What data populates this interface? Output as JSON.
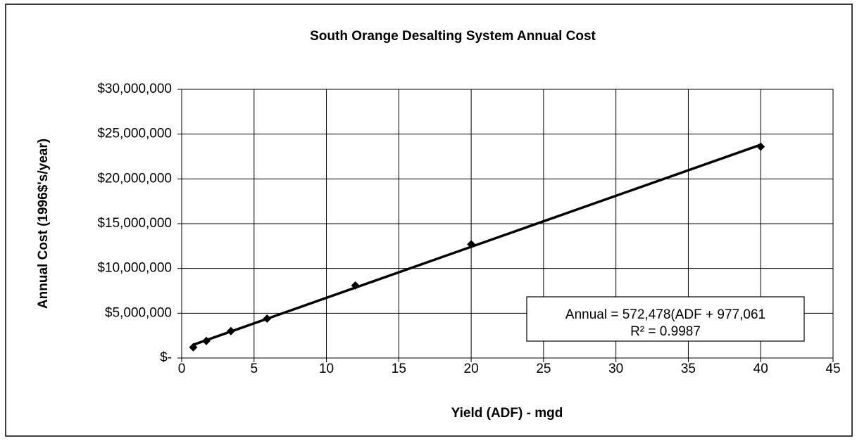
{
  "chart_data": {
    "type": "scatter",
    "title": "South Orange Desalting System Annual Cost",
    "x_label": "Yield (ADF) - mgd",
    "y_label": "Annual Cost (1996$'s/year)",
    "annotation": [
      "Annual = 572,478(ADF + 977,061",
      "R² = 0.9987"
    ],
    "x": [
      0.8,
      1.7,
      3.4,
      5.9,
      12,
      20,
      40
    ],
    "values": [
      1200000,
      1900000,
      3000000,
      4400000,
      8100000,
      12700000,
      23600000
    ],
    "color": "#000000",
    "xlim": [
      0,
      45
    ],
    "xticks": [
      0,
      5,
      10,
      15,
      20,
      25,
      30,
      35,
      40,
      45
    ],
    "ylim": [
      0,
      30000000
    ],
    "yticks": [
      {
        "value": 0,
        "label": "$-"
      },
      {
        "value": 5000000,
        "label": "$5,000,000"
      },
      {
        "value": 10000000,
        "label": "$10,000,000"
      },
      {
        "value": 15000000,
        "label": "$15,000,000"
      },
      {
        "value": 20000000,
        "label": "$20,000,000"
      },
      {
        "value": 25000000,
        "label": "$25,000,000"
      },
      {
        "value": 30000000,
        "label": "$30,000,000"
      }
    ],
    "grid": true,
    "trendline": "linear"
  }
}
